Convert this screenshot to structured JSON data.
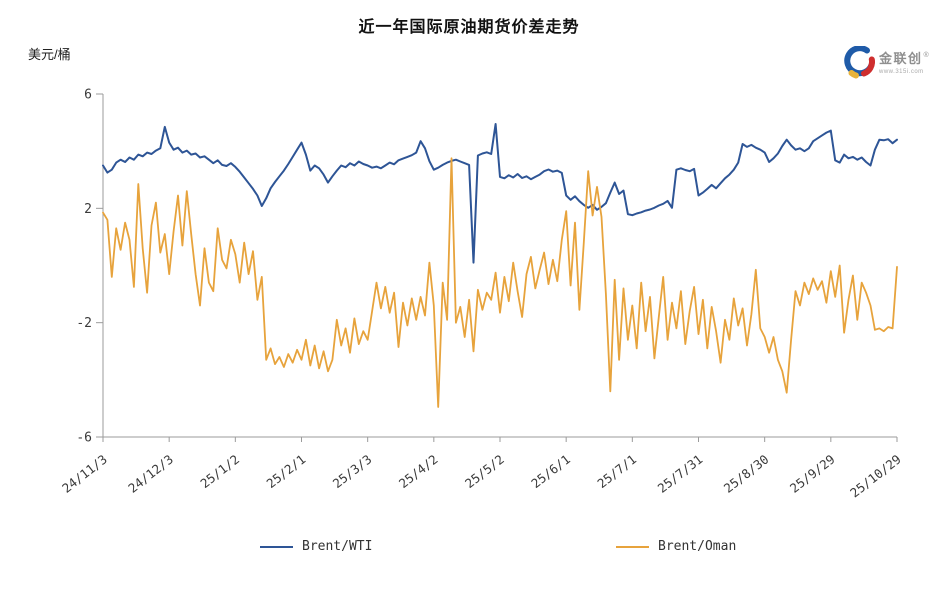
{
  "logo": {
    "brand": "金联创",
    "reg": "®",
    "url": "www.315i.com"
  },
  "chart_data": {
    "type": "line",
    "title": "近一年国际原油期货价差走势",
    "ylabel": "美元/桶",
    "xlabel": "",
    "ylim": [
      -6,
      6
    ],
    "yticks": [
      6,
      2,
      -2,
      -6
    ],
    "grid": false,
    "legend_position": "bottom",
    "sample_interval_days": 2,
    "x_tick_labels": [
      "24/11/3",
      "24/12/3",
      "25/1/2",
      "25/2/1",
      "25/3/3",
      "25/4/2",
      "25/5/2",
      "25/6/1",
      "25/7/1",
      "25/7/31",
      "25/8/30",
      "25/9/29",
      "25/10/29"
    ],
    "series": [
      {
        "name": "Brent/WTI",
        "color": "#2E5596",
        "values": [
          3.5,
          3.25,
          3.35,
          3.6,
          3.7,
          3.62,
          3.78,
          3.7,
          3.88,
          3.82,
          3.95,
          3.9,
          4.02,
          4.1,
          4.85,
          4.3,
          4.05,
          4.12,
          3.95,
          4.02,
          3.88,
          3.92,
          3.78,
          3.82,
          3.7,
          3.58,
          3.68,
          3.52,
          3.48,
          3.58,
          3.45,
          3.28,
          3.08,
          2.88,
          2.68,
          2.45,
          2.08,
          2.35,
          2.7,
          2.92,
          3.12,
          3.32,
          3.55,
          3.8,
          4.05,
          4.3,
          3.88,
          3.32,
          3.5,
          3.4,
          3.18,
          2.9,
          3.12,
          3.32,
          3.5,
          3.44,
          3.58,
          3.5,
          3.64,
          3.55,
          3.5,
          3.42,
          3.46,
          3.4,
          3.5,
          3.6,
          3.54,
          3.68,
          3.74,
          3.8,
          3.86,
          3.95,
          4.35,
          4.1,
          3.65,
          3.35,
          3.42,
          3.52,
          3.6,
          3.66,
          3.7,
          3.64,
          3.58,
          3.52,
          0.1,
          3.85,
          3.92,
          3.96,
          3.9,
          4.95,
          3.1,
          3.05,
          3.16,
          3.08,
          3.2,
          3.06,
          3.12,
          3.02,
          3.1,
          3.18,
          3.3,
          3.36,
          3.28,
          3.32,
          3.24,
          2.45,
          2.3,
          2.42,
          2.25,
          2.12,
          2.02,
          2.12,
          1.95,
          2.05,
          2.18,
          2.55,
          2.9,
          2.5,
          2.62,
          1.8,
          1.76,
          1.82,
          1.86,
          1.92,
          1.96,
          2.02,
          2.1,
          2.16,
          2.26,
          2.02,
          3.35,
          3.4,
          3.34,
          3.3,
          3.38,
          2.45,
          2.55,
          2.68,
          2.82,
          2.7,
          2.88,
          3.05,
          3.18,
          3.35,
          3.6,
          4.25,
          4.15,
          4.22,
          4.12,
          4.05,
          3.95,
          3.62,
          3.75,
          3.92,
          4.18,
          4.4,
          4.2,
          4.05,
          4.1,
          4.0,
          4.1,
          4.35,
          4.45,
          4.55,
          4.65,
          4.72,
          3.68,
          3.6,
          3.88,
          3.75,
          3.8,
          3.7,
          3.78,
          3.62,
          3.5,
          4.05,
          4.4,
          4.38,
          4.42,
          4.28,
          4.4
        ]
      },
      {
        "name": "Brent/Oman",
        "color": "#E7A33C",
        "values": [
          1.85,
          1.6,
          -0.4,
          1.3,
          0.55,
          1.5,
          0.9,
          -0.75,
          2.85,
          0.6,
          -0.95,
          1.4,
          2.2,
          0.45,
          1.1,
          -0.3,
          1.2,
          2.45,
          0.7,
          2.6,
          1.1,
          -0.3,
          -1.4,
          0.6,
          -0.6,
          -0.9,
          1.3,
          0.2,
          -0.1,
          0.9,
          0.4,
          -0.6,
          0.8,
          -0.3,
          0.5,
          -1.2,
          -0.4,
          -3.3,
          -2.9,
          -3.45,
          -3.2,
          -3.55,
          -3.1,
          -3.4,
          -2.95,
          -3.3,
          -2.6,
          -3.5,
          -2.8,
          -3.6,
          -3.0,
          -3.7,
          -3.3,
          -1.9,
          -2.8,
          -2.2,
          -3.05,
          -1.85,
          -2.75,
          -2.3,
          -2.6,
          -1.6,
          -0.6,
          -1.5,
          -0.75,
          -1.65,
          -0.95,
          -2.85,
          -1.3,
          -2.1,
          -1.15,
          -1.9,
          -1.1,
          -1.75,
          0.1,
          -1.4,
          -4.95,
          -0.6,
          -1.9,
          3.75,
          -2.0,
          -1.45,
          -2.5,
          -1.2,
          -3.0,
          -0.85,
          -1.55,
          -0.95,
          -1.2,
          -0.25,
          -1.65,
          -0.4,
          -1.25,
          0.1,
          -0.9,
          -1.8,
          -0.3,
          0.3,
          -0.8,
          -0.15,
          0.45,
          -0.65,
          0.2,
          -0.55,
          0.9,
          1.9,
          -0.7,
          1.5,
          -1.55,
          0.8,
          3.3,
          1.75,
          2.75,
          1.7,
          -1.0,
          -4.4,
          -0.5,
          -3.3,
          -0.8,
          -2.6,
          -1.4,
          -2.9,
          -0.6,
          -2.3,
          -1.1,
          -3.25,
          -1.8,
          -0.4,
          -2.6,
          -1.3,
          -2.2,
          -0.9,
          -2.75,
          -1.6,
          -0.75,
          -2.4,
          -1.2,
          -2.9,
          -1.45,
          -2.3,
          -3.4,
          -1.9,
          -2.6,
          -1.15,
          -2.1,
          -1.5,
          -2.8,
          -1.7,
          -0.15,
          -2.2,
          -2.5,
          -3.05,
          -2.5,
          -3.3,
          -3.7,
          -4.45,
          -2.6,
          -0.9,
          -1.4,
          -0.6,
          -1.0,
          -0.45,
          -0.85,
          -0.55,
          -1.3,
          -0.2,
          -1.1,
          0.0,
          -2.35,
          -1.2,
          -0.35,
          -1.9,
          -0.6,
          -0.95,
          -1.4,
          -2.25,
          -2.2,
          -2.3,
          -2.15,
          -2.2,
          -0.05
        ]
      }
    ]
  }
}
